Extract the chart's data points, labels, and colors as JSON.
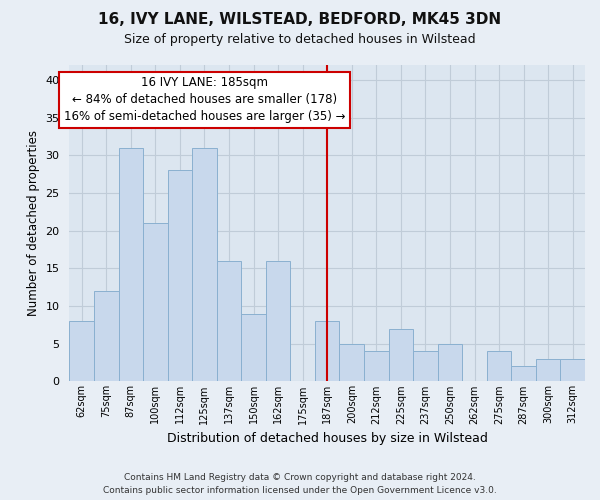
{
  "title": "16, IVY LANE, WILSTEAD, BEDFORD, MK45 3DN",
  "subtitle": "Size of property relative to detached houses in Wilstead",
  "xlabel": "Distribution of detached houses by size in Wilstead",
  "ylabel": "Number of detached properties",
  "bar_labels": [
    "62sqm",
    "75sqm",
    "87sqm",
    "100sqm",
    "112sqm",
    "125sqm",
    "137sqm",
    "150sqm",
    "162sqm",
    "175sqm",
    "187sqm",
    "200sqm",
    "212sqm",
    "225sqm",
    "237sqm",
    "250sqm",
    "262sqm",
    "275sqm",
    "287sqm",
    "300sqm",
    "312sqm"
  ],
  "bar_values": [
    8,
    12,
    31,
    21,
    28,
    31,
    16,
    9,
    16,
    0,
    8,
    5,
    4,
    7,
    4,
    5,
    0,
    4,
    2,
    3,
    3
  ],
  "bar_color": "#c8d8ec",
  "bar_edge_color": "#8ab0d0",
  "vline_x_index": 10,
  "vline_color": "#cc0000",
  "annotation_title": "16 IVY LANE: 185sqm",
  "annotation_line1": "← 84% of detached houses are smaller (178)",
  "annotation_line2": "16% of semi-detached houses are larger (35) →",
  "annotation_box_color": "#ffffff",
  "annotation_box_edge": "#cc0000",
  "ylim": [
    0,
    42
  ],
  "yticks": [
    0,
    5,
    10,
    15,
    20,
    25,
    30,
    35,
    40
  ],
  "footer_line1": "Contains HM Land Registry data © Crown copyright and database right 2024.",
  "footer_line2": "Contains public sector information licensed under the Open Government Licence v3.0.",
  "bg_color": "#e8eef5",
  "plot_bg_color": "#dce6f0",
  "grid_color": "#c0ccd8",
  "title_fontsize": 11,
  "subtitle_fontsize": 9,
  "annot_fontsize": 8.5
}
